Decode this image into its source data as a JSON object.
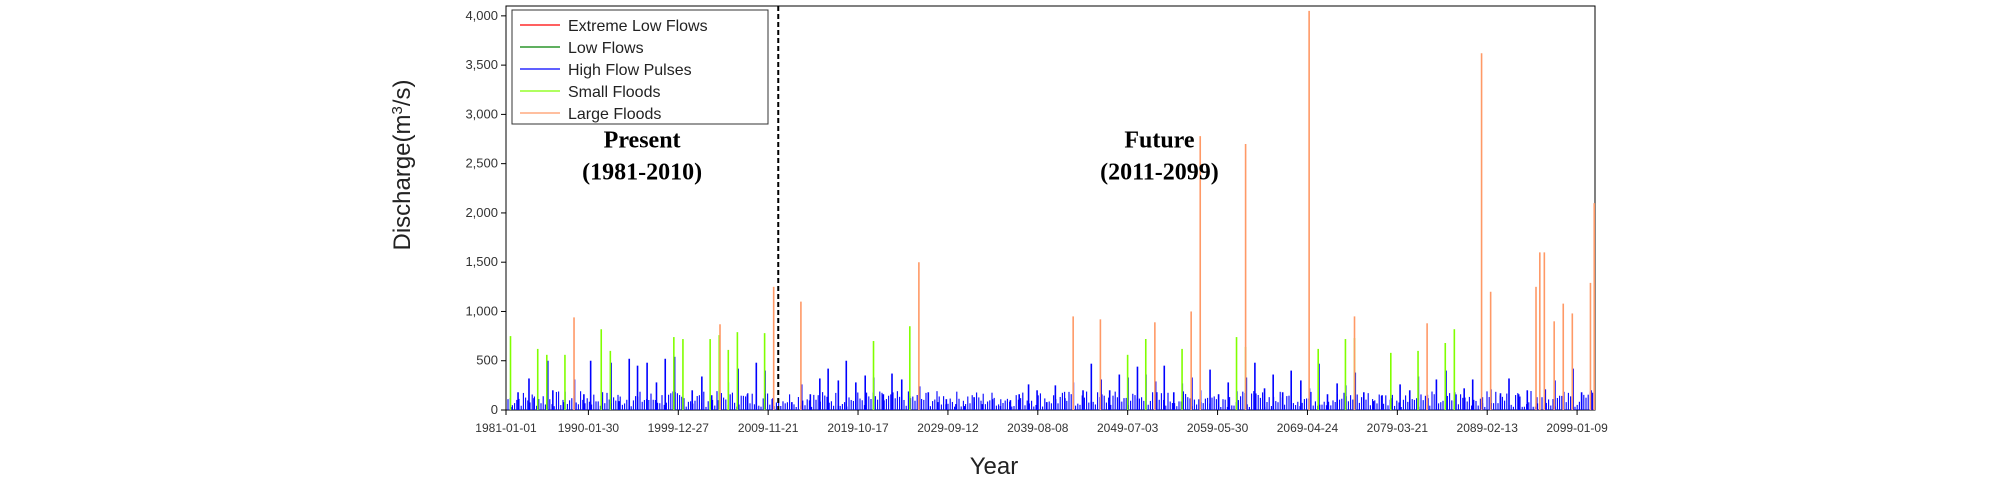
{
  "chart_data": {
    "type": "bar",
    "ylabel_main": "Discharge(m",
    "ylabel_sup": "3",
    "ylabel_end": "/s)",
    "xlabel": "Year",
    "ylim": [
      0,
      4100
    ],
    "xlim": [
      "1981-01-01",
      "2100-12-31"
    ],
    "y_ticks": [
      {
        "value": 0,
        "label": "0"
      },
      {
        "value": 500,
        "label": "500"
      },
      {
        "value": 1000,
        "label": "1,000"
      },
      {
        "value": 1500,
        "label": "1,500"
      },
      {
        "value": 2000,
        "label": "2,000"
      },
      {
        "value": 2500,
        "label": "2,500"
      },
      {
        "value": 3000,
        "label": "3,000"
      },
      {
        "value": 3500,
        "label": "3,500"
      },
      {
        "value": 4000,
        "label": "4,000"
      }
    ],
    "x_ticks": [
      "1981-01-01",
      "1990-01-30",
      "1999-12-27",
      "2009-11-21",
      "2019-10-17",
      "2029-09-12",
      "2039-08-08",
      "2049-07-03",
      "2059-05-30",
      "2069-04-24",
      "2079-03-21",
      "2089-02-13",
      "2099-01-09"
    ],
    "divider_date": "2011-01-01",
    "annotations": [
      {
        "line1": "Present",
        "line2": "(1981-2010)",
        "date": "1996-01-01",
        "y": 2500
      },
      {
        "line1": "Future",
        "line2": "(2011-2099)",
        "date": "2053-01-01",
        "y": 2500
      }
    ],
    "legend_position": "top-left",
    "series": [
      {
        "name": "Extreme Low Flows",
        "color": "#ff0000",
        "points": []
      },
      {
        "name": "Low Flows",
        "color": "#008000",
        "points": []
      },
      {
        "name": "High Flow Pulses",
        "color": "#0000ff",
        "points": [
          {
            "x": "1981-09-01",
            "y": 30
          },
          {
            "x": "1982-05-01",
            "y": 180
          },
          {
            "x": "1983-07-15",
            "y": 320
          },
          {
            "x": "1984-02-01",
            "y": 120
          },
          {
            "x": "1985-08-10",
            "y": 500
          },
          {
            "x": "1986-03-01",
            "y": 200
          },
          {
            "x": "1987-06-01",
            "y": 80
          },
          {
            "x": "1988-07-20",
            "y": 310
          },
          {
            "x": "1989-08-01",
            "y": 160
          },
          {
            "x": "1990-05-01",
            "y": 500
          },
          {
            "x": "1991-07-15",
            "y": 120
          },
          {
            "x": "1992-08-01",
            "y": 480
          },
          {
            "x": "1993-06-20",
            "y": 90
          },
          {
            "x": "1994-08-01",
            "y": 520
          },
          {
            "x": "1995-07-01",
            "y": 450
          },
          {
            "x": "1996-07-20",
            "y": 480
          },
          {
            "x": "1997-08-01",
            "y": 280
          },
          {
            "x": "1998-07-20",
            "y": 520
          },
          {
            "x": "1999-08-01",
            "y": 540
          },
          {
            "x": "2000-07-15",
            "y": 60
          },
          {
            "x": "2001-07-10",
            "y": 200
          },
          {
            "x": "2002-08-01",
            "y": 340
          },
          {
            "x": "2003-09-01",
            "y": 150
          },
          {
            "x": "2004-06-01",
            "y": 100
          },
          {
            "x": "2005-07-01",
            "y": 280
          },
          {
            "x": "2006-08-01",
            "y": 420
          },
          {
            "x": "2007-08-10",
            "y": 160
          },
          {
            "x": "2008-08-01",
            "y": 480
          },
          {
            "x": "2009-07-20",
            "y": 400
          },
          {
            "x": "2010-06-01",
            "y": 120
          },
          {
            "x": "2012-07-01",
            "y": 80
          },
          {
            "x": "2013-08-01",
            "y": 260
          },
          {
            "x": "2014-07-15",
            "y": 160
          },
          {
            "x": "2015-08-01",
            "y": 320
          },
          {
            "x": "2016-07-01",
            "y": 420
          },
          {
            "x": "2017-08-15",
            "y": 300
          },
          {
            "x": "2018-07-01",
            "y": 500
          },
          {
            "x": "2019-07-20",
            "y": 280
          },
          {
            "x": "2020-08-01",
            "y": 350
          },
          {
            "x": "2021-07-10",
            "y": 330
          },
          {
            "x": "2022-08-01",
            "y": 160
          },
          {
            "x": "2023-07-15",
            "y": 370
          },
          {
            "x": "2024-08-10",
            "y": 310
          },
          {
            "x": "2025-07-01",
            "y": 140
          },
          {
            "x": "2026-08-01",
            "y": 240
          },
          {
            "x": "2027-07-15",
            "y": 180
          },
          {
            "x": "2028-08-01",
            "y": 80
          },
          {
            "x": "2029-07-10",
            "y": 110
          },
          {
            "x": "2030-08-01",
            "y": 60
          },
          {
            "x": "2031-07-15",
            "y": 40
          },
          {
            "x": "2032-08-01",
            "y": 130
          },
          {
            "x": "2033-07-01",
            "y": 60
          },
          {
            "x": "2034-08-10",
            "y": 110
          },
          {
            "x": "2035-07-01",
            "y": 40
          },
          {
            "x": "2036-08-01",
            "y": 100
          },
          {
            "x": "2037-07-20",
            "y": 160
          },
          {
            "x": "2038-08-01",
            "y": 260
          },
          {
            "x": "2039-07-10",
            "y": 200
          },
          {
            "x": "2040-08-01",
            "y": 80
          },
          {
            "x": "2041-07-15",
            "y": 250
          },
          {
            "x": "2042-08-01",
            "y": 120
          },
          {
            "x": "2043-07-10",
            "y": 280
          },
          {
            "x": "2044-08-01",
            "y": 200
          },
          {
            "x": "2045-07-01",
            "y": 470
          },
          {
            "x": "2046-08-01",
            "y": 310
          },
          {
            "x": "2047-07-10",
            "y": 200
          },
          {
            "x": "2048-08-01",
            "y": 360
          },
          {
            "x": "2049-07-20",
            "y": 330
          },
          {
            "x": "2050-08-01",
            "y": 440
          },
          {
            "x": "2051-07-10",
            "y": 360
          },
          {
            "x": "2052-08-01",
            "y": 290
          },
          {
            "x": "2053-07-15",
            "y": 450
          },
          {
            "x": "2054-08-01",
            "y": 180
          },
          {
            "x": "2055-07-10",
            "y": 270
          },
          {
            "x": "2056-08-01",
            "y": 330
          },
          {
            "x": "2057-07-15",
            "y": 200
          },
          {
            "x": "2058-08-01",
            "y": 410
          },
          {
            "x": "2059-07-10",
            "y": 160
          },
          {
            "x": "2060-08-01",
            "y": 280
          },
          {
            "x": "2061-07-15",
            "y": 190
          },
          {
            "x": "2062-08-01",
            "y": 330
          },
          {
            "x": "2063-07-10",
            "y": 480
          },
          {
            "x": "2064-08-01",
            "y": 220
          },
          {
            "x": "2065-07-15",
            "y": 360
          },
          {
            "x": "2066-08-01",
            "y": 180
          },
          {
            "x": "2067-07-10",
            "y": 400
          },
          {
            "x": "2068-08-01",
            "y": 300
          },
          {
            "x": "2069-07-15",
            "y": 220
          },
          {
            "x": "2070-08-01",
            "y": 470
          },
          {
            "x": "2071-07-10",
            "y": 160
          },
          {
            "x": "2072-08-01",
            "y": 270
          },
          {
            "x": "2073-07-15",
            "y": 250
          },
          {
            "x": "2074-08-01",
            "y": 380
          },
          {
            "x": "2075-07-10",
            "y": 180
          },
          {
            "x": "2076-08-01",
            "y": 90
          },
          {
            "x": "2077-07-15",
            "y": 150
          },
          {
            "x": "2078-08-01",
            "y": 120
          },
          {
            "x": "2079-07-10",
            "y": 260
          },
          {
            "x": "2080-08-01",
            "y": 200
          },
          {
            "x": "2081-07-15",
            "y": 340
          },
          {
            "x": "2082-08-01",
            "y": 120
          },
          {
            "x": "2083-07-10",
            "y": 310
          },
          {
            "x": "2084-08-01",
            "y": 400
          },
          {
            "x": "2085-07-15",
            "y": 180
          },
          {
            "x": "2086-08-01",
            "y": 220
          },
          {
            "x": "2087-07-10",
            "y": 310
          },
          {
            "x": "2088-08-01",
            "y": 130
          },
          {
            "x": "2089-07-15",
            "y": 210
          },
          {
            "x": "2090-08-01",
            "y": 170
          },
          {
            "x": "2091-07-10",
            "y": 320
          },
          {
            "x": "2092-08-01",
            "y": 160
          },
          {
            "x": "2093-07-15",
            "y": 200
          },
          {
            "x": "2094-08-01",
            "y": 130
          },
          {
            "x": "2095-07-10",
            "y": 210
          },
          {
            "x": "2096-08-01",
            "y": 300
          },
          {
            "x": "2097-07-15",
            "y": 160
          },
          {
            "x": "2098-08-01",
            "y": 420
          },
          {
            "x": "2099-07-10",
            "y": 180
          },
          {
            "x": "2100-08-01",
            "y": 200
          }
        ]
      },
      {
        "name": "Small Floods",
        "color": "#80ff00",
        "points": [
          {
            "x": "1981-07-01",
            "y": 750
          },
          {
            "x": "1984-07-01",
            "y": 620
          },
          {
            "x": "1985-07-01",
            "y": 560
          },
          {
            "x": "1987-07-01",
            "y": 560
          },
          {
            "x": "1991-07-01",
            "y": 820
          },
          {
            "x": "1992-07-01",
            "y": 600
          },
          {
            "x": "1999-07-01",
            "y": 740
          },
          {
            "x": "2000-07-01",
            "y": 720
          },
          {
            "x": "2003-07-01",
            "y": 720
          },
          {
            "x": "2004-07-01",
            "y": 760
          },
          {
            "x": "2005-07-01",
            "y": 610
          },
          {
            "x": "2006-07-01",
            "y": 790
          },
          {
            "x": "2009-07-01",
            "y": 780
          },
          {
            "x": "2021-07-01",
            "y": 700
          },
          {
            "x": "2025-07-01",
            "y": 850
          },
          {
            "x": "2049-07-01",
            "y": 560
          },
          {
            "x": "2051-07-01",
            "y": 720
          },
          {
            "x": "2055-07-01",
            "y": 620
          },
          {
            "x": "2061-07-01",
            "y": 740
          },
          {
            "x": "2062-07-01",
            "y": 640
          },
          {
            "x": "2070-07-01",
            "y": 620
          },
          {
            "x": "2073-07-01",
            "y": 720
          },
          {
            "x": "2074-07-01",
            "y": 730
          },
          {
            "x": "2078-07-01",
            "y": 580
          },
          {
            "x": "2081-07-01",
            "y": 600
          },
          {
            "x": "2084-07-01",
            "y": 680
          },
          {
            "x": "2085-07-01",
            "y": 820
          }
        ]
      },
      {
        "name": "Large Floods",
        "color": "#ff9966",
        "points": [
          {
            "x": "1988-07-01",
            "y": 940
          },
          {
            "x": "2004-08-01",
            "y": 870
          },
          {
            "x": "2010-07-01",
            "y": 1250
          },
          {
            "x": "2013-07-01",
            "y": 1100
          },
          {
            "x": "2026-07-01",
            "y": 1500
          },
          {
            "x": "2043-07-01",
            "y": 950
          },
          {
            "x": "2046-07-01",
            "y": 920
          },
          {
            "x": "2052-07-01",
            "y": 890
          },
          {
            "x": "2056-07-01",
            "y": 1000
          },
          {
            "x": "2057-07-01",
            "y": 2780
          },
          {
            "x": "2062-07-01",
            "y": 2700
          },
          {
            "x": "2069-07-01",
            "y": 4050
          },
          {
            "x": "2074-07-01",
            "y": 950
          },
          {
            "x": "2082-07-01",
            "y": 880
          },
          {
            "x": "2088-07-01",
            "y": 3620
          },
          {
            "x": "2089-07-01",
            "y": 1200
          },
          {
            "x": "2094-07-01",
            "y": 1250
          },
          {
            "x": "2094-12-01",
            "y": 1600
          },
          {
            "x": "2095-06-01",
            "y": 1600
          },
          {
            "x": "2096-07-01",
            "y": 900
          },
          {
            "x": "2097-07-01",
            "y": 1080
          },
          {
            "x": "2098-07-01",
            "y": 980
          },
          {
            "x": "2100-07-01",
            "y": 1290
          },
          {
            "x": "2100-12-01",
            "y": 2100
          }
        ]
      }
    ]
  }
}
